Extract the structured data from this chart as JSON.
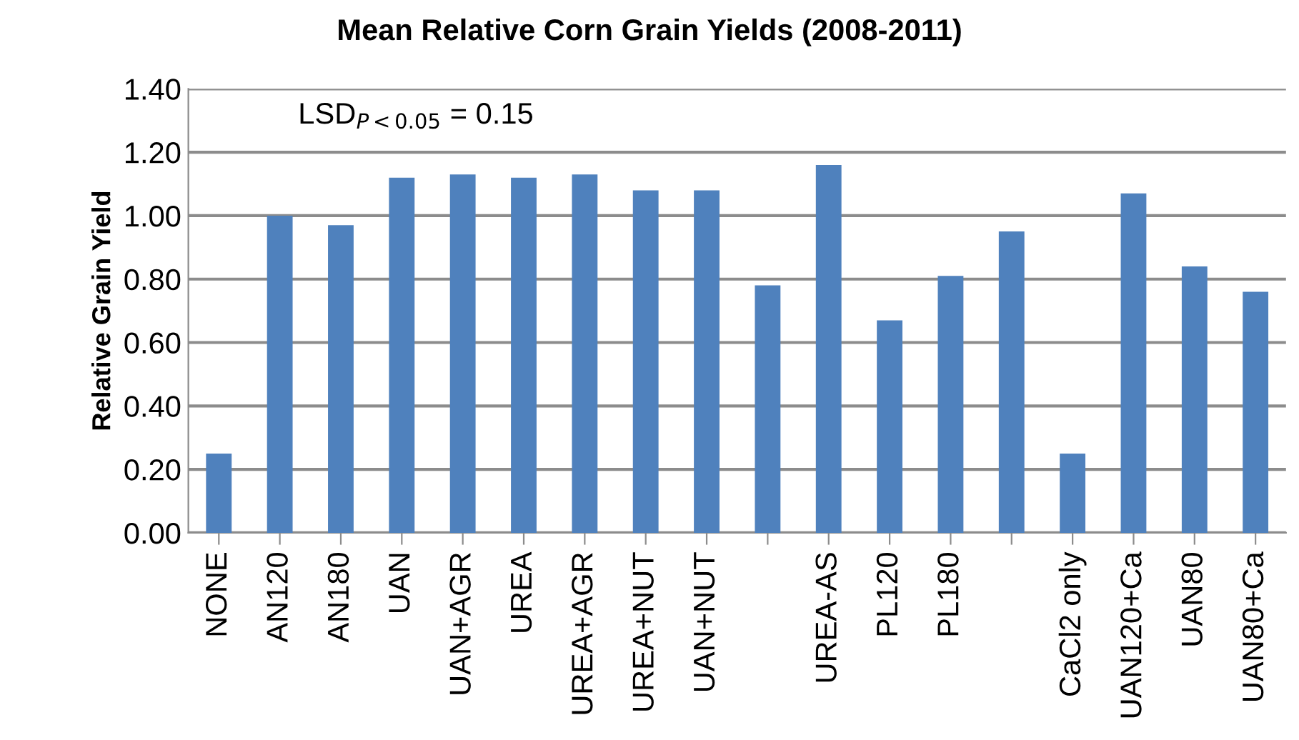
{
  "chart_data": {
    "type": "bar",
    "title": "Mean Relative Corn Grain Yields (2008-2011)",
    "ylabel": "Relative Grain Yield",
    "categories": [
      "NONE",
      "AN120",
      "AN180",
      "UAN",
      "UAN+AGR",
      "UREA",
      "UREA+AGR",
      "UREA+NUT",
      "UAN+NUT",
      null,
      "UREA-AS",
      "PL120",
      "PL180",
      null,
      "CaCl2 only",
      "UAN120+Ca",
      "UAN80",
      "UAN80+Ca"
    ],
    "values": [
      0.25,
      1.0,
      0.97,
      1.12,
      1.13,
      1.12,
      1.13,
      1.08,
      1.08,
      0.78,
      1.16,
      0.67,
      0.81,
      0.95,
      0.25,
      1.07,
      0.84,
      0.76
    ],
    "color": "#4f81bd",
    "ylim": [
      0,
      1.4
    ],
    "yticks": [
      {
        "value": 0,
        "label": "0.00"
      },
      {
        "value": 0.2,
        "label": "0.20"
      },
      {
        "value": 0.4,
        "label": "0.40"
      },
      {
        "value": 0.6,
        "label": "0.60"
      },
      {
        "value": 0.8,
        "label": "0.80"
      },
      {
        "value": 1.0,
        "label": "1.00"
      },
      {
        "value": 1.2,
        "label": "1.20"
      },
      {
        "value": 1.4,
        "label": "1.40"
      }
    ],
    "grid": "y",
    "annotations": [
      "LSD$_{P<0.05}$ = 0.15"
    ]
  }
}
